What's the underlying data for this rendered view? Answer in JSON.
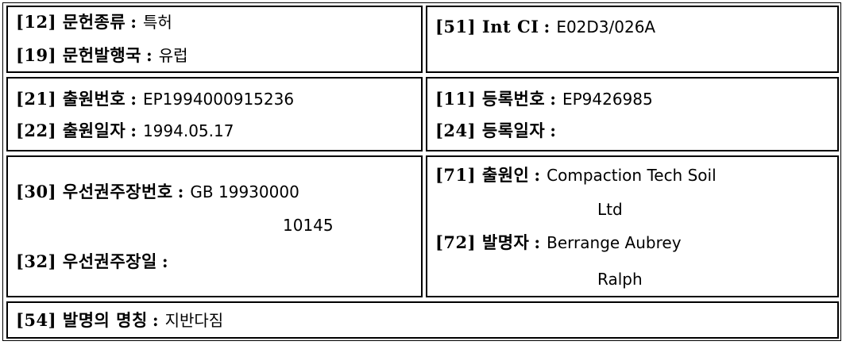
{
  "fields": {
    "doc_type": {
      "label": "[12] 문헌종류",
      "value": "특허"
    },
    "country": {
      "label": "[19] 문헌발행국",
      "value": "유럽"
    },
    "ipc": {
      "label": "[51] Int CI",
      "value": "E02D3/026A"
    },
    "app_no": {
      "label": "[21] 출원번호",
      "value": "EP1994000915236"
    },
    "app_date": {
      "label": "[22] 출원일자",
      "value": "1994.05.17"
    },
    "reg_no": {
      "label": "[11] 등록번호",
      "value": "EP9426985"
    },
    "reg_date": {
      "label": "[24] 등록일자",
      "value": ""
    },
    "priority_no": {
      "label": "[30] 우선권주장번호",
      "value_line1": "GB 19930000",
      "value_line2": "10145"
    },
    "priority_date": {
      "label": "[32] 우선권주장일",
      "value": ""
    },
    "applicant": {
      "label": "[71] 출원인",
      "value_line1": "Compaction Tech Soil",
      "value_line2": "Ltd"
    },
    "inventor": {
      "label": "[72] 발명자",
      "value_line1": "Berrange Aubrey",
      "value_line2": "Ralph"
    },
    "title": {
      "label": "[54] 발명의 명칭",
      "value": "지반다짐"
    }
  },
  "separator": ":"
}
